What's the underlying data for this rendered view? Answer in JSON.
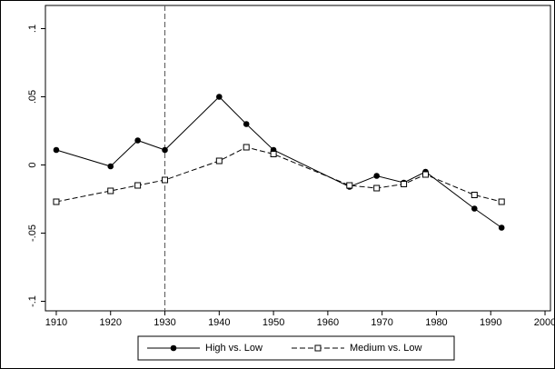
{
  "chart_data": {
    "type": "line",
    "x": [
      1910,
      1920,
      1925,
      1930,
      1940,
      1945,
      1950,
      1964,
      1969,
      1974,
      1978,
      1987,
      1992
    ],
    "series": [
      {
        "name": "High vs. Low",
        "color": "#000000",
        "dash": "solid",
        "marker": "filled-circle",
        "values": [
          0.011,
          -0.001,
          0.018,
          0.011,
          0.05,
          0.03,
          0.011,
          -0.016,
          -0.008,
          -0.013,
          -0.005,
          -0.032,
          -0.046
        ]
      },
      {
        "name": "Medium vs. Low",
        "color": "#000000",
        "dash": "dashed",
        "marker": "hollow-square",
        "values": [
          -0.027,
          -0.019,
          -0.015,
          -0.011,
          0.003,
          0.013,
          0.008,
          -0.015,
          -0.017,
          -0.014,
          -0.007,
          -0.022,
          -0.027
        ]
      }
    ],
    "xlim": [
      1908,
      2001
    ],
    "xticks": [
      1910,
      1920,
      1930,
      1940,
      1950,
      1960,
      1970,
      1980,
      1990,
      2000
    ],
    "ylim": [
      -0.107,
      0.117
    ],
    "yticks": [
      {
        "value": -0.1,
        "label": "-.1"
      },
      {
        "value": -0.05,
        "label": "-.05"
      },
      0,
      {
        "value": 0.05,
        "label": ".05"
      },
      {
        "value": 0.1,
        "label": ".1"
      }
    ],
    "vline": 1930,
    "legend": "bottom"
  }
}
